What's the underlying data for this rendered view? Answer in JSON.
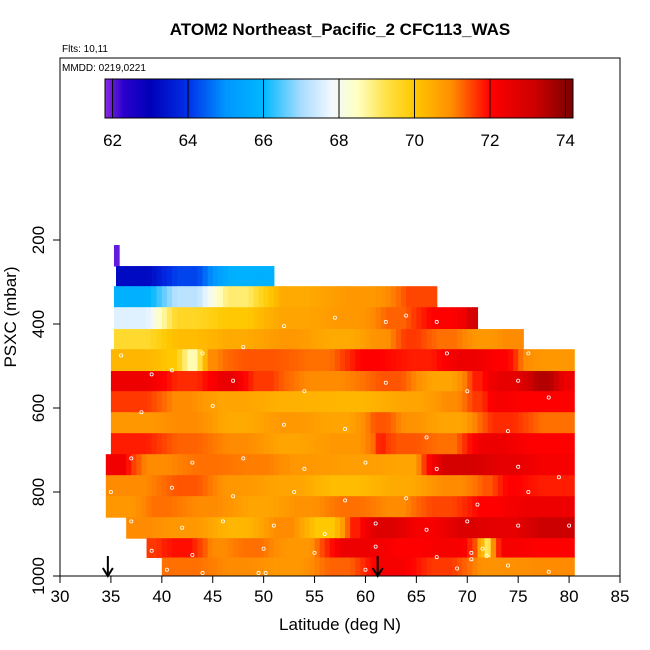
{
  "chart_data": {
    "type": "heatmap",
    "title": "ATOM2 Northeast_Pacific_2 CFC113_WAS",
    "flights_label": "Flts: 10,11",
    "dates_label": "MMDD: 0219,0221",
    "xlabel": "Latitude (deg N)",
    "ylabel": "PSXC (mbar)",
    "xlim": [
      30,
      85
    ],
    "ylim": [
      1000,
      100
    ],
    "x_ticks": [
      30,
      35,
      40,
      45,
      50,
      55,
      60,
      65,
      70,
      75,
      80,
      85
    ],
    "y_ticks": [
      200,
      400,
      600,
      800,
      1000
    ],
    "colorbar": {
      "min": 62,
      "max": 74,
      "ticks": [
        62,
        64,
        66,
        68,
        70,
        72,
        74
      ],
      "gradient_stops": [
        {
          "v": 61.8,
          "c": "#8a2be2"
        },
        {
          "v": 62.3,
          "c": "#2a00cc"
        },
        {
          "v": 63.0,
          "c": "#0000b8"
        },
        {
          "v": 64.0,
          "c": "#0030e8"
        },
        {
          "v": 65.0,
          "c": "#0096ff"
        },
        {
          "v": 66.0,
          "c": "#00b8ff"
        },
        {
          "v": 67.0,
          "c": "#a8dcff"
        },
        {
          "v": 67.8,
          "c": "#f2f8ff"
        },
        {
          "v": 68.5,
          "c": "#ffffc0"
        },
        {
          "v": 69.3,
          "c": "#ffe040"
        },
        {
          "v": 70.0,
          "c": "#ffc800"
        },
        {
          "v": 71.0,
          "c": "#ff8c00"
        },
        {
          "v": 72.0,
          "c": "#ff0000"
        },
        {
          "v": 73.2,
          "c": "#cc0000"
        },
        {
          "v": 74.2,
          "c": "#7a0000"
        }
      ]
    },
    "bands": [
      {
        "p": [
          212,
          262
        ],
        "segs": [
          [
            35.3,
            35.8,
            62.0
          ]
        ]
      },
      {
        "p": [
          262,
          310
        ],
        "segs": [
          [
            35.5,
            40,
            63.2
          ],
          [
            40,
            45,
            64.2
          ],
          [
            45,
            51,
            65.8
          ]
        ]
      },
      {
        "p": [
          310,
          360
        ],
        "segs": [
          [
            35.3,
            40,
            65.8
          ],
          [
            40,
            45,
            67.2
          ],
          [
            45,
            50,
            69.0
          ],
          [
            50,
            56,
            70.5
          ],
          [
            56,
            63,
            70.8
          ],
          [
            63,
            67,
            71.5
          ]
        ]
      },
      {
        "p": [
          360,
          412
        ],
        "segs": [
          [
            35.3,
            40,
            67.6
          ],
          [
            40,
            45,
            69.6
          ],
          [
            45,
            50,
            70.0
          ],
          [
            50,
            56,
            70.6
          ],
          [
            56,
            61,
            70.8
          ],
          [
            61,
            65,
            71.3
          ],
          [
            65,
            70,
            72.0
          ],
          [
            70,
            71,
            73.0
          ]
        ]
      },
      {
        "p": [
          412,
          460
        ],
        "segs": [
          [
            35.3,
            40,
            69.5
          ],
          [
            40,
            45,
            70.2
          ],
          [
            45,
            50,
            70.5
          ],
          [
            50,
            55,
            70.8
          ],
          [
            55,
            60,
            70.5
          ],
          [
            60,
            63,
            70.9
          ],
          [
            63,
            66,
            71.6
          ],
          [
            66,
            70,
            71.2
          ],
          [
            70,
            73,
            70.8
          ],
          [
            73,
            75.5,
            71.0
          ]
        ]
      },
      {
        "p": [
          460,
          512
        ],
        "segs": [
          [
            35,
            40,
            70.3
          ],
          [
            40,
            42,
            70.0
          ],
          [
            42,
            44,
            68.6
          ],
          [
            44,
            46,
            71.0
          ],
          [
            46,
            53,
            71.4
          ],
          [
            53,
            58,
            71.2
          ],
          [
            58,
            63,
            72.0
          ],
          [
            63,
            68,
            71.8
          ],
          [
            68,
            72,
            72.4
          ],
          [
            72,
            75,
            72.0
          ],
          [
            75,
            76.5,
            71.0
          ],
          [
            76.5,
            80.5,
            70.8
          ]
        ]
      },
      {
        "p": [
          512,
          560
        ],
        "segs": [
          [
            35,
            40,
            72.4
          ],
          [
            40,
            45,
            71.7
          ],
          [
            45,
            48,
            72.5
          ],
          [
            48,
            52,
            71.6
          ],
          [
            52,
            60,
            71.0
          ],
          [
            60,
            65,
            71.4
          ],
          [
            65,
            70,
            70.6
          ],
          [
            70,
            72,
            71.8
          ],
          [
            72,
            76,
            72.6
          ],
          [
            76,
            79,
            73.5
          ],
          [
            79,
            80.5,
            72.4
          ]
        ]
      },
      {
        "p": [
          560,
          610
        ],
        "segs": [
          [
            35,
            40,
            71.6
          ],
          [
            40,
            44,
            71.0
          ],
          [
            44,
            50,
            70.6
          ],
          [
            50,
            55,
            70.4
          ],
          [
            55,
            62,
            70.3
          ],
          [
            62,
            67,
            70.6
          ],
          [
            67,
            70,
            71.0
          ],
          [
            70,
            72,
            71.6
          ],
          [
            72,
            74,
            72.2
          ],
          [
            74,
            80.5,
            72.0
          ]
        ]
      },
      {
        "p": [
          610,
          660
        ],
        "segs": [
          [
            35,
            40,
            70.8
          ],
          [
            40,
            45,
            71.0
          ],
          [
            45,
            50,
            70.5
          ],
          [
            50,
            55,
            70.8
          ],
          [
            55,
            60,
            70.6
          ],
          [
            60,
            63,
            71.4
          ],
          [
            63,
            66,
            70.9
          ],
          [
            66,
            71,
            70.6
          ],
          [
            71,
            76,
            71.7
          ],
          [
            76,
            80.5,
            71.2
          ]
        ]
      },
      {
        "p": [
          660,
          710
        ],
        "segs": [
          [
            35,
            40,
            71.8
          ],
          [
            40,
            45,
            71.3
          ],
          [
            45,
            50,
            71.0
          ],
          [
            50,
            55,
            70.6
          ],
          [
            55,
            61,
            70.8
          ],
          [
            61,
            62,
            71.8
          ],
          [
            62,
            66,
            71.4
          ],
          [
            66,
            70,
            71.2
          ],
          [
            70,
            75,
            72.4
          ],
          [
            75,
            80.5,
            72.0
          ]
        ]
      },
      {
        "p": [
          710,
          760
        ],
        "segs": [
          [
            34.5,
            37,
            72.3
          ],
          [
            37,
            42,
            71.0
          ],
          [
            42,
            47,
            71.2
          ],
          [
            47,
            52,
            71.1
          ],
          [
            52,
            56,
            70.8
          ],
          [
            56,
            62,
            70.7
          ],
          [
            62,
            66,
            70.6
          ],
          [
            66,
            72,
            73.0
          ],
          [
            72,
            76,
            72.6
          ],
          [
            76,
            80.5,
            72.2
          ]
        ]
      },
      {
        "p": [
          760,
          810
        ],
        "segs": [
          [
            34.5,
            40,
            71.0
          ],
          [
            40,
            45,
            71.4
          ],
          [
            45,
            50,
            70.8
          ],
          [
            50,
            55,
            70.6
          ],
          [
            55,
            61,
            70.2
          ],
          [
            61,
            66,
            70.5
          ],
          [
            66,
            71,
            71.0
          ],
          [
            71,
            73,
            71.4
          ],
          [
            73,
            76,
            72.0
          ],
          [
            76,
            80.5,
            71.8
          ]
        ]
      },
      {
        "p": [
          810,
          860
        ],
        "segs": [
          [
            34.5,
            38,
            70.8
          ],
          [
            38,
            42,
            71.2
          ],
          [
            42,
            47,
            71.0
          ],
          [
            47,
            52,
            70.6
          ],
          [
            52,
            56,
            70.9
          ],
          [
            56,
            61,
            71.2
          ],
          [
            61,
            65,
            71.0
          ],
          [
            65,
            70,
            71.5
          ],
          [
            70,
            74,
            72.0
          ],
          [
            74,
            80.5,
            72.4
          ]
        ]
      },
      {
        "p": [
          860,
          910
        ],
        "segs": [
          [
            36.5,
            40,
            71.0
          ],
          [
            40,
            45,
            70.8
          ],
          [
            45,
            50,
            70.3
          ],
          [
            50,
            54,
            71.0
          ],
          [
            54,
            58,
            70.0
          ],
          [
            58,
            60,
            71.8
          ],
          [
            60,
            64,
            72.8
          ],
          [
            64,
            68,
            72.2
          ],
          [
            68,
            72,
            72.8
          ],
          [
            72,
            76,
            72.6
          ],
          [
            76,
            80.5,
            73.2
          ]
        ]
      },
      {
        "p": [
          910,
          956
        ],
        "segs": [
          [
            38.5,
            40,
            71.6
          ],
          [
            40,
            44,
            71.9
          ],
          [
            44,
            47,
            71.0
          ],
          [
            47,
            51,
            71.2
          ],
          [
            51,
            56,
            70.8
          ],
          [
            56,
            62,
            72.4
          ],
          [
            62,
            66,
            72.0
          ],
          [
            66,
            71,
            72.2
          ],
          [
            71,
            71.7,
            70.4
          ],
          [
            71.7,
            72.3,
            69.0
          ],
          [
            72.3,
            76,
            72.2
          ],
          [
            76,
            80.5,
            72.0
          ]
        ]
      },
      {
        "p": [
          956,
          1000
        ],
        "segs": [
          [
            40,
            45,
            71.2
          ],
          [
            45,
            50,
            71.0
          ],
          [
            50,
            55,
            70.8
          ],
          [
            55,
            60,
            71.3
          ],
          [
            60,
            65,
            72.2
          ],
          [
            65,
            70,
            71.6
          ],
          [
            70,
            75,
            70.9
          ],
          [
            75,
            80.5,
            71.0
          ]
        ]
      }
    ],
    "sample_points": [
      {
        "lat": 36,
        "p": 475
      },
      {
        "lat": 41,
        "p": 510
      },
      {
        "lat": 44,
        "p": 470
      },
      {
        "lat": 48,
        "p": 455
      },
      {
        "lat": 52,
        "p": 405
      },
      {
        "lat": 57,
        "p": 385
      },
      {
        "lat": 62,
        "p": 395
      },
      {
        "lat": 64,
        "p": 380
      },
      {
        "lat": 67,
        "p": 395
      },
      {
        "lat": 68,
        "p": 470
      },
      {
        "lat": 75,
        "p": 535
      },
      {
        "lat": 76,
        "p": 470
      },
      {
        "lat": 39,
        "p": 520
      },
      {
        "lat": 47,
        "p": 535
      },
      {
        "lat": 54,
        "p": 560
      },
      {
        "lat": 62,
        "p": 540
      },
      {
        "lat": 70,
        "p": 560
      },
      {
        "lat": 78,
        "p": 575
      },
      {
        "lat": 38,
        "p": 610
      },
      {
        "lat": 45,
        "p": 595
      },
      {
        "lat": 52,
        "p": 640
      },
      {
        "lat": 58,
        "p": 650
      },
      {
        "lat": 66,
        "p": 670
      },
      {
        "lat": 74,
        "p": 655
      },
      {
        "lat": 37,
        "p": 720
      },
      {
        "lat": 43,
        "p": 730
      },
      {
        "lat": 48,
        "p": 720
      },
      {
        "lat": 54,
        "p": 745
      },
      {
        "lat": 60,
        "p": 730
      },
      {
        "lat": 67,
        "p": 745
      },
      {
        "lat": 75,
        "p": 740
      },
      {
        "lat": 79,
        "p": 765
      },
      {
        "lat": 35,
        "p": 800
      },
      {
        "lat": 41,
        "p": 790
      },
      {
        "lat": 47,
        "p": 810
      },
      {
        "lat": 53,
        "p": 800
      },
      {
        "lat": 58,
        "p": 820
      },
      {
        "lat": 64,
        "p": 815
      },
      {
        "lat": 71,
        "p": 830
      },
      {
        "lat": 76,
        "p": 800
      },
      {
        "lat": 37,
        "p": 870
      },
      {
        "lat": 42,
        "p": 885
      },
      {
        "lat": 46,
        "p": 870
      },
      {
        "lat": 51,
        "p": 880
      },
      {
        "lat": 56,
        "p": 900
      },
      {
        "lat": 61,
        "p": 875
      },
      {
        "lat": 66,
        "p": 890
      },
      {
        "lat": 70,
        "p": 870
      },
      {
        "lat": 75,
        "p": 880
      },
      {
        "lat": 80,
        "p": 880
      },
      {
        "lat": 39,
        "p": 940
      },
      {
        "lat": 43,
        "p": 950
      },
      {
        "lat": 50,
        "p": 935
      },
      {
        "lat": 55,
        "p": 945
      },
      {
        "lat": 61,
        "p": 930
      },
      {
        "lat": 67,
        "p": 955
      },
      {
        "lat": 70.4,
        "p": 945
      },
      {
        "lat": 70.4,
        "p": 960
      },
      {
        "lat": 71.5,
        "p": 935
      },
      {
        "lat": 71.9,
        "p": 952
      },
      {
        "lat": 40.5,
        "p": 985
      },
      {
        "lat": 44,
        "p": 993
      },
      {
        "lat": 49.5,
        "p": 993
      },
      {
        "lat": 50.2,
        "p": 993
      },
      {
        "lat": 60,
        "p": 985
      },
      {
        "lat": 69,
        "p": 982
      },
      {
        "lat": 74,
        "p": 975
      },
      {
        "lat": 78,
        "p": 990
      }
    ],
    "arrows_lat": [
      34.7,
      61.2
    ]
  }
}
